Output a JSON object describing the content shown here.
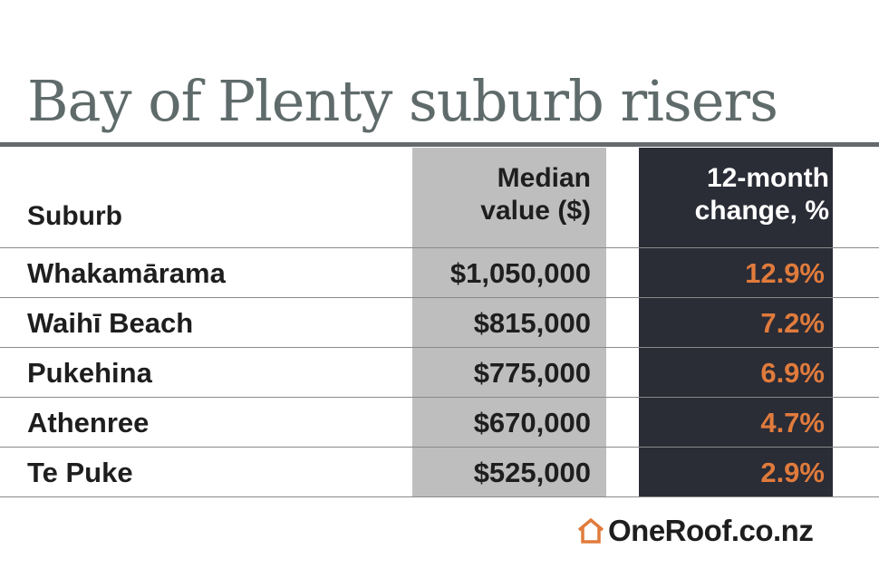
{
  "colors": {
    "title": "#5f6b6a",
    "median_column_bg": "#bebebe",
    "change_column_bg": "#2a2c36",
    "change_value": "#e07b3c",
    "logo_accent": "#e07b3c"
  },
  "chart_data": {
    "type": "table",
    "title": "Bay of Plenty suburb risers",
    "columns": [
      {
        "key": "suburb",
        "header_lines": [
          "Suburb"
        ]
      },
      {
        "key": "median",
        "header_lines": [
          "Median",
          "value ($)"
        ]
      },
      {
        "key": "change",
        "header_lines": [
          "12-month",
          "change, %"
        ]
      }
    ],
    "rows": [
      {
        "suburb": "Whakamārama",
        "median": "$1,050,000",
        "change": "12.9%"
      },
      {
        "suburb": "Waihī Beach",
        "median": "$815,000",
        "change": "7.2%"
      },
      {
        "suburb": "Pukehina",
        "median": "$775,000",
        "change": "6.9%"
      },
      {
        "suburb": "Athenree",
        "median": "$670,000",
        "change": "4.7%"
      },
      {
        "suburb": "Te Puke",
        "median": "$525,000",
        "change": "2.9%"
      }
    ],
    "numeric_values": {
      "median_value": [
        1050000,
        815000,
        775000,
        670000,
        525000
      ],
      "change_pct": [
        12.9,
        7.2,
        6.9,
        4.7,
        2.9
      ]
    }
  },
  "branding": {
    "logo_text": "OneRoof.co.nz",
    "logo_icon": "house-icon"
  }
}
